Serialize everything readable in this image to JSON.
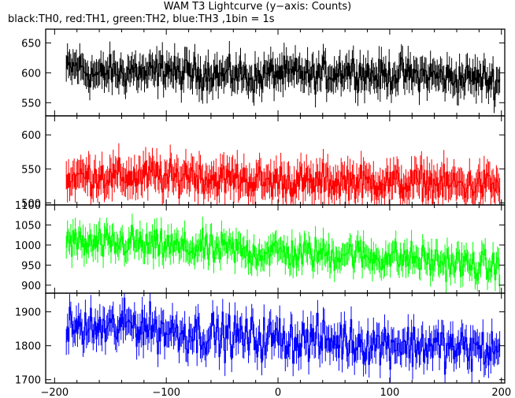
{
  "chart_data": {
    "type": "line",
    "title": "WAM T3 Lightcurve (y−axis: Counts)",
    "subtitle": "black:TH0, red:TH1, green:TH2, blue:TH3 ,1bin = 1s",
    "xlim": [
      -208,
      203
    ],
    "x_ticks": [
      -200,
      -100,
      0,
      100,
      200
    ],
    "x_tick_labels": [
      "−200",
      "−100",
      "0",
      "100",
      "200"
    ],
    "panels": [
      {
        "key": "TH0",
        "color": "#000000",
        "ylim": [
          528,
          673
        ],
        "y_ticks": [
          550,
          600,
          650
        ],
        "x": [
          -190,
          -180,
          -170,
          -160,
          -150,
          -140,
          -130,
          -120,
          -110,
          -100,
          -90,
          -80,
          -70,
          -60,
          -50,
          -40,
          -30,
          -20,
          -10,
          0,
          10,
          20,
          30,
          40,
          50,
          60,
          70,
          80,
          90,
          100,
          110,
          120,
          130,
          140,
          150,
          160,
          170,
          180,
          190,
          200
        ],
        "values": [
          605,
          612,
          600,
          595,
          603,
          598,
          606,
          597,
          600,
          610,
          596,
          602,
          598,
          601,
          595,
          599,
          596,
          590,
          598,
          600,
          596,
          601,
          593,
          598,
          600,
          606,
          603,
          598,
          594,
          597,
          600,
          595,
          598,
          595,
          593,
          590,
          592,
          590,
          588,
          585
        ],
        "noise": 18
      },
      {
        "key": "TH1",
        "color": "#ff0000",
        "ylim": [
          497,
          628
        ],
        "y_ticks": [
          500,
          550,
          600
        ],
        "x": [
          -190,
          -180,
          -170,
          -160,
          -150,
          -140,
          -130,
          -120,
          -110,
          -100,
          -90,
          -80,
          -70,
          -60,
          -50,
          -40,
          -30,
          -20,
          -10,
          0,
          10,
          20,
          30,
          40,
          50,
          60,
          70,
          80,
          90,
          100,
          110,
          120,
          130,
          140,
          150,
          160,
          170,
          180,
          190,
          200
        ],
        "values": [
          535,
          540,
          538,
          542,
          536,
          540,
          537,
          539,
          541,
          535,
          537,
          545,
          538,
          536,
          534,
          537,
          535,
          532,
          530,
          534,
          532,
          530,
          528,
          532,
          530,
          533,
          531,
          529,
          532,
          530,
          527,
          529,
          531,
          528,
          526,
          528,
          525,
          527,
          526,
          524
        ],
        "noise": 17
      },
      {
        "key": "TH2",
        "color": "#00ff00",
        "ylim": [
          880,
          1100
        ],
        "y_ticks": [
          900,
          950,
          1000,
          1050,
          1100
        ],
        "x": [
          -190,
          -180,
          -170,
          -160,
          -150,
          -140,
          -130,
          -120,
          -110,
          -100,
          -90,
          -80,
          -70,
          -60,
          -50,
          -40,
          -30,
          -20,
          -10,
          0,
          10,
          20,
          30,
          40,
          50,
          60,
          70,
          80,
          90,
          100,
          110,
          120,
          130,
          140,
          150,
          160,
          170,
          180,
          190,
          200
        ],
        "values": [
          1010,
          1005,
          1000,
          1002,
          998,
          1003,
          1008,
          996,
          995,
          1000,
          992,
          990,
          995,
          985,
          990,
          988,
          985,
          980,
          982,
          985,
          978,
          975,
          980,
          978,
          975,
          982,
          978,
          970,
          968,
          972,
          965,
          968,
          962,
          960,
          958,
          955,
          950,
          948,
          945,
          945
        ],
        "noise": 28
      },
      {
        "key": "TH3",
        "color": "#0000ff",
        "ylim": [
          1690,
          1955
        ],
        "y_ticks": [
          1700,
          1800,
          1900
        ],
        "x": [
          -190,
          -180,
          -170,
          -160,
          -150,
          -140,
          -130,
          -120,
          -110,
          -100,
          -90,
          -80,
          -70,
          -60,
          -50,
          -40,
          -30,
          -20,
          -10,
          0,
          10,
          20,
          30,
          40,
          50,
          60,
          70,
          80,
          90,
          100,
          110,
          120,
          130,
          140,
          150,
          160,
          170,
          180,
          190,
          200
        ],
        "values": [
          1850,
          1855,
          1845,
          1852,
          1848,
          1860,
          1865,
          1858,
          1850,
          1845,
          1840,
          1838,
          1835,
          1832,
          1830,
          1828,
          1825,
          1822,
          1820,
          1825,
          1818,
          1815,
          1820,
          1816,
          1812,
          1815,
          1810,
          1808,
          1805,
          1810,
          1806,
          1800,
          1802,
          1798,
          1795,
          1790,
          1792,
          1788,
          1785,
          1790
        ],
        "noise": 45
      }
    ]
  }
}
